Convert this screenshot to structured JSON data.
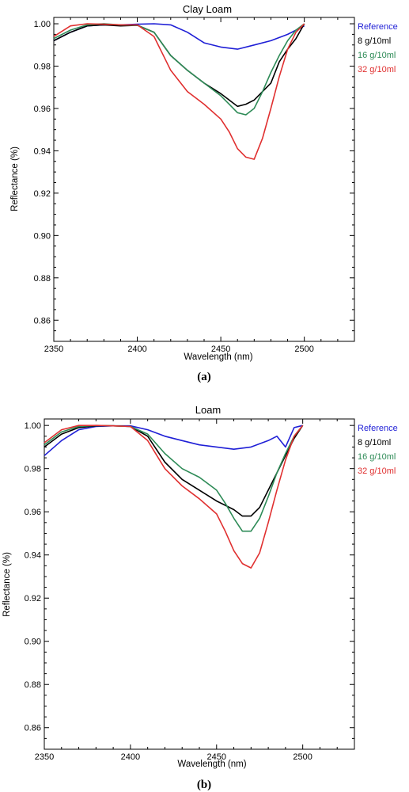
{
  "chart_data": [
    {
      "type": "line",
      "title": "Clay Loam",
      "xlabel": "Wavelength (nm)",
      "ylabel": "Reflectance (%)",
      "caption": "(a)",
      "xlim": [
        2350,
        2530
      ],
      "ylim": [
        0.85,
        1.003
      ],
      "xticks": [
        "2350",
        "2400",
        "2450",
        "2500"
      ],
      "xtick_values": [
        2350,
        2400,
        2450,
        2500
      ],
      "yticks": [
        "1.00",
        "0.98",
        "0.96",
        "0.94",
        "0.92",
        "0.90",
        "0.88",
        "0.86"
      ],
      "ytick_values": [
        1.0,
        0.98,
        0.96,
        0.94,
        0.92,
        0.9,
        0.88,
        0.86
      ],
      "grid": false,
      "legend_position": "right, outside plot",
      "series": [
        {
          "name": "Reference",
          "color": "#1f1fd6",
          "x": [
            2350,
            2360,
            2370,
            2380,
            2390,
            2400,
            2410,
            2420,
            2430,
            2440,
            2450,
            2460,
            2470,
            2480,
            2490,
            2500
          ],
          "y": [
            0.992,
            0.996,
            0.999,
            0.9995,
            0.9995,
            0.9998,
            1.0,
            0.9995,
            0.996,
            0.991,
            0.989,
            0.988,
            0.99,
            0.992,
            0.995,
            0.999
          ]
        },
        {
          "name": "8 g/10ml",
          "color": "#000000",
          "x": [
            2350,
            2360,
            2370,
            2380,
            2390,
            2400,
            2410,
            2420,
            2430,
            2440,
            2450,
            2455,
            2460,
            2465,
            2470,
            2475,
            2480,
            2485,
            2490,
            2495,
            2500
          ],
          "y": [
            0.992,
            0.996,
            0.999,
            0.9995,
            0.999,
            0.9993,
            0.996,
            0.985,
            0.978,
            0.972,
            0.967,
            0.964,
            0.961,
            0.962,
            0.964,
            0.968,
            0.972,
            0.982,
            0.988,
            0.993,
            1.0
          ]
        },
        {
          "name": "16 g/10ml",
          "color": "#2e8b57",
          "x": [
            2350,
            2360,
            2370,
            2380,
            2390,
            2400,
            2410,
            2420,
            2430,
            2440,
            2450,
            2455,
            2460,
            2465,
            2470,
            2475,
            2480,
            2485,
            2490,
            2495,
            2500
          ],
          "y": [
            0.993,
            0.997,
            0.9995,
            1.0,
            0.9995,
            0.9993,
            0.996,
            0.985,
            0.978,
            0.972,
            0.966,
            0.962,
            0.958,
            0.957,
            0.96,
            0.968,
            0.977,
            0.985,
            0.992,
            0.997,
            1.0
          ]
        },
        {
          "name": "32 g/10ml",
          "color": "#e03030",
          "x": [
            2350,
            2360,
            2370,
            2380,
            2390,
            2400,
            2410,
            2420,
            2430,
            2440,
            2450,
            2455,
            2460,
            2465,
            2470,
            2475,
            2480,
            2485,
            2490,
            2495,
            2500
          ],
          "y": [
            0.994,
            0.999,
            1.0,
            0.9998,
            0.9995,
            0.9995,
            0.994,
            0.978,
            0.968,
            0.962,
            0.955,
            0.949,
            0.941,
            0.937,
            0.936,
            0.946,
            0.96,
            0.975,
            0.988,
            0.996,
            1.0
          ]
        }
      ]
    },
    {
      "type": "line",
      "title": "Loam",
      "xlabel": "Wavelength (nm)",
      "ylabel": "Reflectance (%)",
      "caption": "(b)",
      "xlim": [
        2350,
        2530
      ],
      "ylim": [
        0.85,
        1.003
      ],
      "xticks": [
        "2350",
        "2400",
        "2450",
        "2500"
      ],
      "xtick_values": [
        2350,
        2400,
        2450,
        2500
      ],
      "yticks": [
        "1.00",
        "0.98",
        "0.96",
        "0.94",
        "0.92",
        "0.90",
        "0.88",
        "0.86"
      ],
      "ytick_values": [
        1.0,
        0.98,
        0.96,
        0.94,
        0.92,
        0.9,
        0.88,
        0.86
      ],
      "grid": false,
      "legend_position": "right, outside plot",
      "series": [
        {
          "name": "Reference",
          "color": "#1f1fd6",
          "x": [
            2350,
            2360,
            2370,
            2380,
            2390,
            2400,
            2410,
            2420,
            2430,
            2440,
            2450,
            2460,
            2470,
            2480,
            2485,
            2490,
            2495,
            2500
          ],
          "y": [
            0.986,
            0.993,
            0.998,
            0.9995,
            0.9998,
            0.9998,
            0.998,
            0.995,
            0.993,
            0.991,
            0.99,
            0.989,
            0.99,
            0.993,
            0.995,
            0.99,
            0.999,
            1.0
          ]
        },
        {
          "name": "8 g/10ml",
          "color": "#000000",
          "x": [
            2350,
            2360,
            2370,
            2380,
            2390,
            2400,
            2410,
            2420,
            2430,
            2440,
            2450,
            2455,
            2460,
            2465,
            2470,
            2475,
            2480,
            2485,
            2490,
            2495,
            2500
          ],
          "y": [
            0.99,
            0.996,
            0.999,
            0.9998,
            0.9998,
            0.9995,
            0.995,
            0.983,
            0.975,
            0.97,
            0.965,
            0.963,
            0.961,
            0.958,
            0.958,
            0.962,
            0.97,
            0.978,
            0.986,
            0.994,
            1.0
          ]
        },
        {
          "name": "16 g/10ml",
          "color": "#2e8b57",
          "x": [
            2350,
            2360,
            2370,
            2380,
            2390,
            2400,
            2410,
            2420,
            2430,
            2440,
            2450,
            2455,
            2460,
            2465,
            2470,
            2475,
            2480,
            2485,
            2490,
            2495,
            2500
          ],
          "y": [
            0.991,
            0.997,
            0.9995,
            1.0,
            0.9998,
            0.9995,
            0.996,
            0.987,
            0.98,
            0.976,
            0.97,
            0.964,
            0.957,
            0.951,
            0.951,
            0.957,
            0.967,
            0.978,
            0.987,
            0.995,
            1.0
          ]
        },
        {
          "name": "32 g/10ml",
          "color": "#e03030",
          "x": [
            2350,
            2360,
            2370,
            2380,
            2390,
            2400,
            2410,
            2420,
            2430,
            2440,
            2450,
            2455,
            2460,
            2465,
            2470,
            2475,
            2480,
            2485,
            2490,
            2495,
            2500
          ],
          "y": [
            0.992,
            0.998,
            1.0,
            1.0,
            0.9998,
            0.9995,
            0.993,
            0.98,
            0.972,
            0.966,
            0.959,
            0.951,
            0.942,
            0.936,
            0.934,
            0.941,
            0.955,
            0.97,
            0.984,
            0.995,
            1.0
          ]
        }
      ]
    }
  ]
}
